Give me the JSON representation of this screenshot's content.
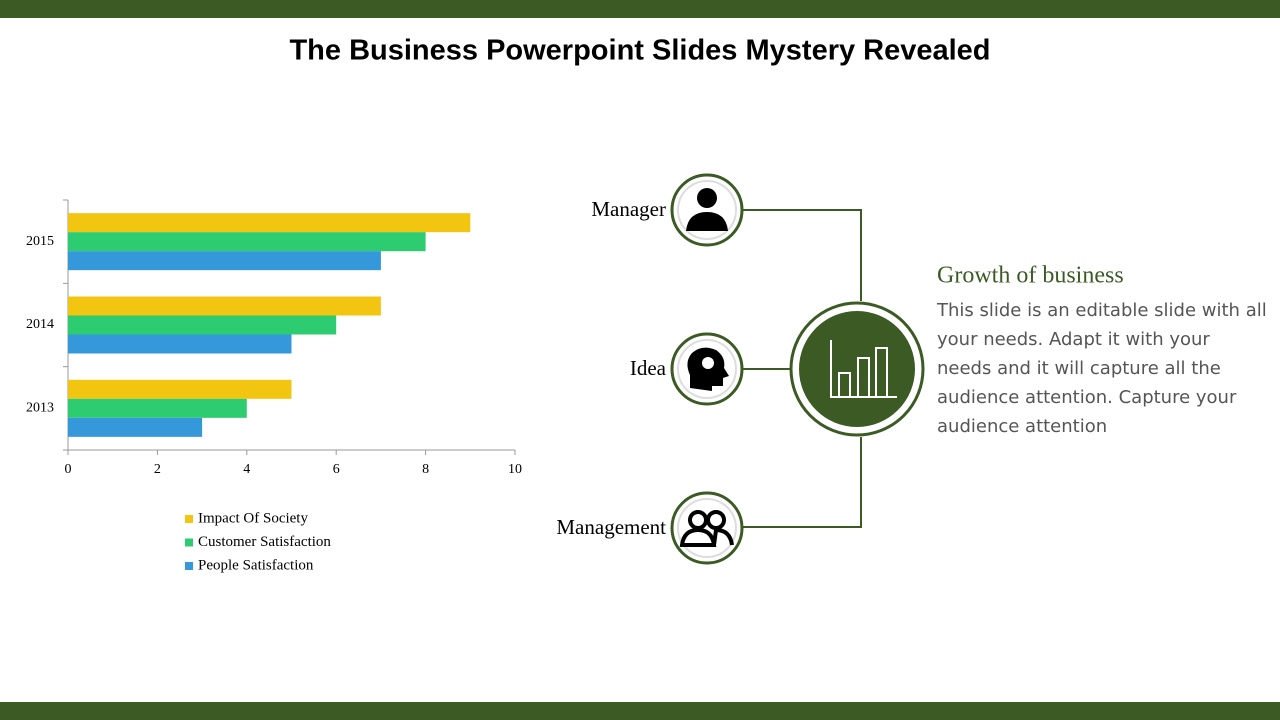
{
  "title": "The Business Powerpoint Slides Mystery Revealed",
  "chart_data": {
    "type": "barh",
    "categories": [
      "2013",
      "2014",
      "2015"
    ],
    "series": [
      {
        "name": "Impact Of Society",
        "color": "#f2c511",
        "values": [
          5,
          7,
          9
        ]
      },
      {
        "name": "Customer Satisfaction",
        "color": "#2ecc71",
        "values": [
          4,
          6,
          8
        ]
      },
      {
        "name": "People Satisfaction",
        "color": "#3498db",
        "values": [
          3,
          5,
          7
        ]
      }
    ],
    "xlim": [
      0,
      10
    ],
    "xticks": [
      0,
      2,
      4,
      6,
      8,
      10
    ]
  },
  "diagram": {
    "nodes": [
      {
        "label": "Manager"
      },
      {
        "label": "Idea"
      },
      {
        "label": "Management"
      }
    ],
    "heading": "Growth of business",
    "text": "This slide is an editable slide with all your needs. Adapt it with your needs and it will capture all the audience attention. Capture your audience attention"
  }
}
